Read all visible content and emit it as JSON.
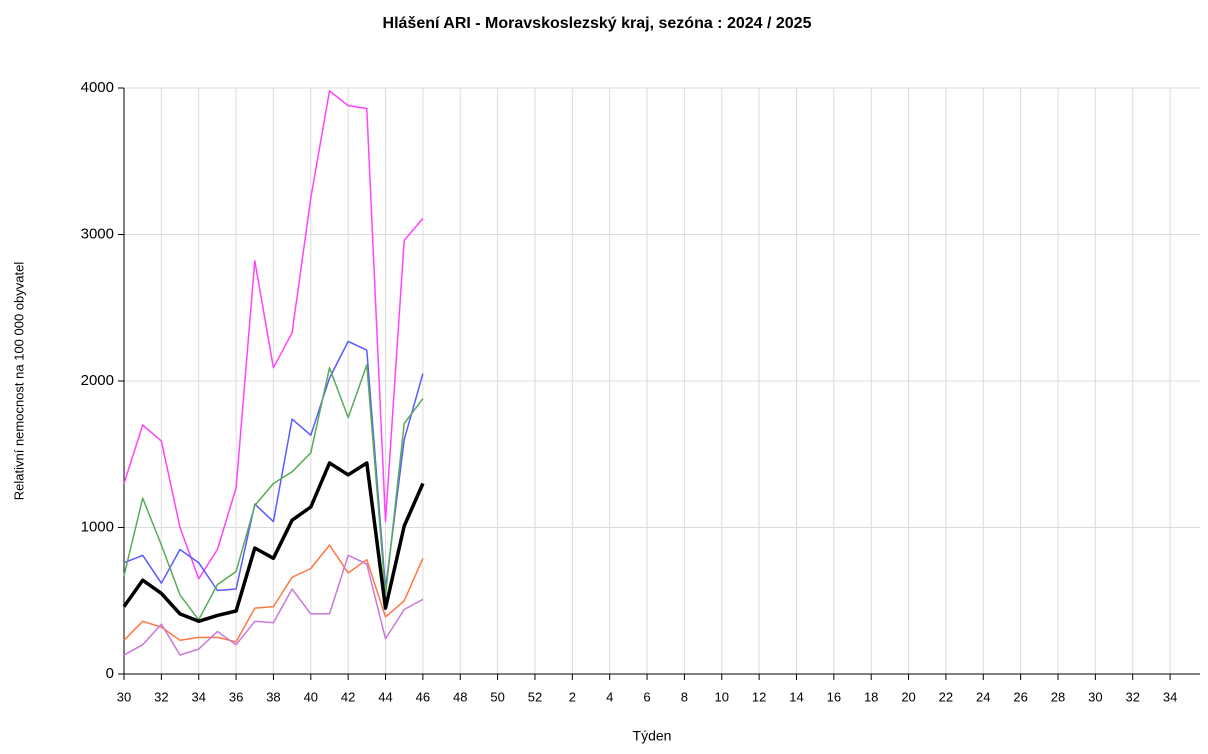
{
  "chart_data": {
    "type": "line",
    "title": "Hlášení ARI  -   Moravskoslezský kraj, sezóna : 2024 / 2025",
    "xlabel": "Týden",
    "ylabel": "Relativní nemocnost na 100 000 obyvatel",
    "categories": [
      "30",
      null,
      "32",
      null,
      "34",
      null,
      "36",
      null,
      "38",
      null,
      "40",
      null,
      "42",
      null,
      "44",
      null,
      "46",
      null,
      "48",
      null,
      "50",
      null,
      "52",
      null,
      "2",
      null,
      "4",
      null,
      "6",
      null,
      "8",
      null,
      "10",
      null,
      "12",
      null,
      "14",
      null,
      "16",
      null,
      "18",
      null,
      "20",
      null,
      "22",
      null,
      "24",
      null,
      "26",
      null,
      "28",
      null,
      "30",
      null,
      "32",
      null,
      "34",
      null
    ],
    "series": [
      {
        "color": "#ff44ff",
        "line_width": 1.5,
        "values": [
          1300,
          1700,
          1590,
          1000,
          650,
          850,
          1270,
          2820,
          2090,
          2330,
          3250,
          3980,
          3880,
          3860,
          1040,
          2960,
          3110,
          null,
          null,
          null,
          null,
          null,
          null,
          null,
          null,
          null,
          null,
          null,
          null,
          null,
          null,
          null,
          null,
          null,
          null,
          null,
          null,
          null,
          null,
          null,
          null,
          null,
          null,
          null,
          null,
          null,
          null,
          null,
          null,
          null,
          null,
          null,
          null,
          null,
          null,
          null,
          null,
          null
        ]
      },
      {
        "color": "#5a5aff",
        "line_width": 1.5,
        "values": [
          760,
          810,
          620,
          850,
          760,
          570,
          580,
          1160,
          1040,
          1740,
          1630,
          2020,
          2270,
          2210,
          580,
          1600,
          2050,
          null,
          null,
          null,
          null,
          null,
          null,
          null,
          null,
          null,
          null,
          null,
          null,
          null,
          null,
          null,
          null,
          null,
          null,
          null,
          null,
          null,
          null,
          null,
          null,
          null,
          null,
          null,
          null,
          null,
          null,
          null,
          null,
          null,
          null,
          null,
          null,
          null,
          null,
          null,
          null,
          null
        ]
      },
      {
        "color": "#5aaa5a",
        "line_width": 1.5,
        "values": [
          670,
          1200,
          880,
          540,
          370,
          610,
          700,
          1150,
          1300,
          1380,
          1510,
          2090,
          1750,
          2110,
          540,
          1710,
          1880,
          null,
          null,
          null,
          null,
          null,
          null,
          null,
          null,
          null,
          null,
          null,
          null,
          null,
          null,
          null,
          null,
          null,
          null,
          null,
          null,
          null,
          null,
          null,
          null,
          null,
          null,
          null,
          null,
          null,
          null,
          null,
          null,
          null,
          null,
          null,
          null,
          null,
          null,
          null,
          null,
          null
        ]
      },
      {
        "color": "#ff7744",
        "line_width": 1.5,
        "values": [
          230,
          360,
          320,
          230,
          250,
          250,
          220,
          450,
          460,
          660,
          720,
          880,
          690,
          780,
          390,
          500,
          790,
          null,
          null,
          null,
          null,
          null,
          null,
          null,
          null,
          null,
          null,
          null,
          null,
          null,
          null,
          null,
          null,
          null,
          null,
          null,
          null,
          null,
          null,
          null,
          null,
          null,
          null,
          null,
          null,
          null,
          null,
          null,
          null,
          null,
          null,
          null,
          null,
          null,
          null,
          null,
          null,
          null
        ]
      },
      {
        "color": "#cc77dd",
        "line_width": 1.5,
        "values": [
          130,
          200,
          340,
          130,
          170,
          290,
          200,
          360,
          350,
          580,
          410,
          410,
          810,
          750,
          240,
          440,
          510,
          null,
          null,
          null,
          null,
          null,
          null,
          null,
          null,
          null,
          null,
          null,
          null,
          null,
          null,
          null,
          null,
          null,
          null,
          null,
          null,
          null,
          null,
          null,
          null,
          null,
          null,
          null,
          null,
          null,
          null,
          null,
          null,
          null,
          null,
          null,
          null,
          null,
          null,
          null,
          null,
          null
        ]
      },
      {
        "color": "#000000",
        "line_width": 3.5,
        "values": [
          460,
          640,
          550,
          410,
          360,
          400,
          430,
          860,
          790,
          1050,
          1140,
          1440,
          1360,
          1440,
          450,
          1010,
          1300,
          null,
          null,
          null,
          null,
          null,
          null,
          null,
          null,
          null,
          null,
          null,
          null,
          null,
          null,
          null,
          null,
          null,
          null,
          null,
          null,
          null,
          null,
          null,
          null,
          null,
          null,
          null,
          null,
          null,
          null,
          null,
          null,
          null,
          null,
          null,
          null,
          null,
          null,
          null,
          null,
          null
        ]
      }
    ],
    "ylim": [
      0,
      4000
    ],
    "yticks": [
      0,
      1000,
      2000,
      3000,
      4000
    ],
    "grid": true
  }
}
